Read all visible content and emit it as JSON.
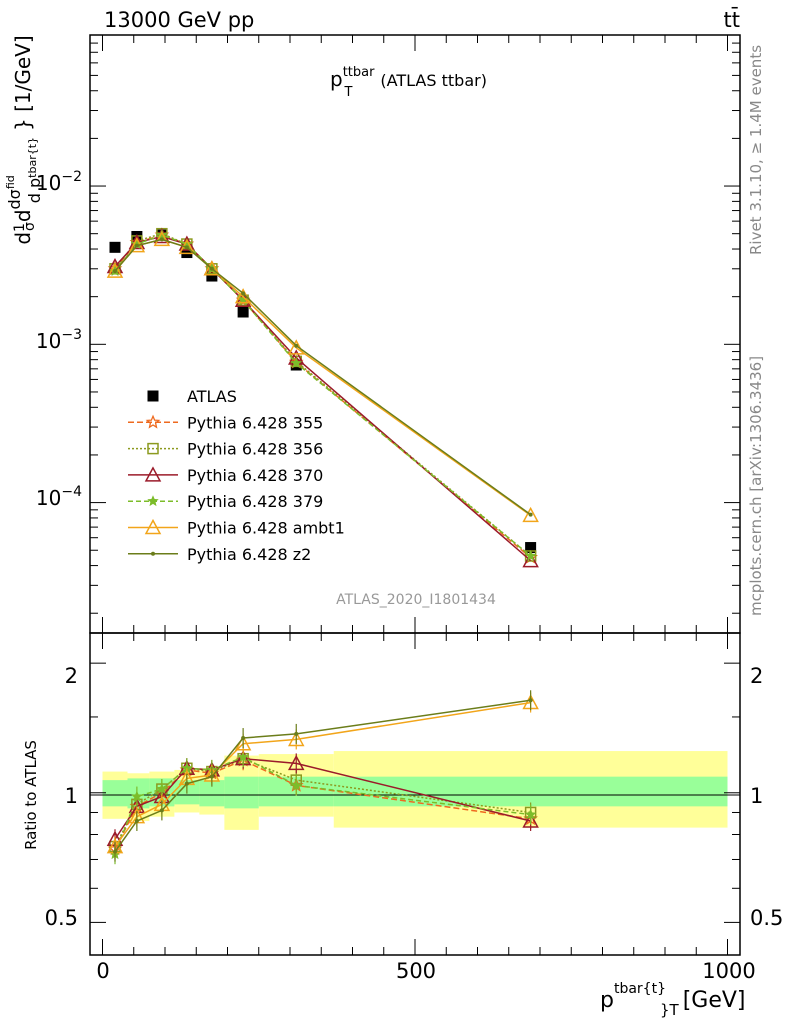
{
  "header": {
    "left": "13000 GeV pp",
    "right": "tt̄"
  },
  "side_labels": {
    "rivet": "Rivet 3.1.10, ≥ 1.4M events",
    "mcplots": "mcplots.cern.ch [arXiv:1306.3436]"
  },
  "analysis_id": "ATLAS_2020_I1801434",
  "title": {
    "main": "p",
    "sup": "ttbar",
    "sub": "T",
    "suffix": "(ATLAS ttbar)"
  },
  "ylabel_upper": "dσ/dp_T^tbar{t} · 1/σ  [1/GeV]",
  "ylabel_lower": "Ratio to ATLAS",
  "xlabel": {
    "main": "p",
    "sup": "tbar{t}",
    "sub": "T",
    "unit": "[GeV]"
  },
  "upper_ticks": [
    "10^{-2}",
    "10^{-3}",
    "10^{-4}"
  ],
  "lower_ticks": [
    "2",
    "1",
    "0.5"
  ],
  "x_ticks": [
    "0",
    "500",
    "1000"
  ],
  "colors": {
    "ATLAS": "#000000",
    "p355": "#ee6a1f",
    "p356": "#8c9a1f",
    "p370": "#9b1b2a",
    "p379": "#7cbc2a",
    "ambt1": "#f2a51a",
    "z2": "#6b7d1a",
    "band_inner": "#99ff99",
    "band_outer": "#ffff99"
  },
  "chart_data": {
    "type": "line",
    "x": [
      20,
      55,
      95,
      135,
      175,
      225,
      310,
      685
    ],
    "xlim": [
      -20,
      1020
    ],
    "upper": {
      "ylim": [
        1.5e-05,
        0.09
      ],
      "log": true,
      "series": [
        {
          "name": "ATLAS",
          "key": "ATLAS",
          "marker": "square",
          "values": [
            0.0041,
            0.0048,
            0.0049,
            0.0038,
            0.0027,
            0.0016,
            0.00074,
            5.2e-05
          ]
        },
        {
          "name": "Pythia 6.428 355",
          "key": "p355",
          "marker": "star-open",
          "dash": "6,3",
          "values": [
            0.003,
            0.0044,
            0.0049,
            0.0043,
            0.003,
            0.0019,
            0.00077,
            4.5e-05
          ]
        },
        {
          "name": "Pythia 6.428 356",
          "key": "p356",
          "marker": "square-open",
          "dash": "2,2",
          "values": [
            0.003,
            0.0045,
            0.005,
            0.0043,
            0.003,
            0.0019,
            0.00078,
            4.6e-05
          ]
        },
        {
          "name": "Pythia 6.428 370",
          "key": "p370",
          "marker": "triangle-open",
          "dash": "",
          "values": [
            0.0031,
            0.0044,
            0.0048,
            0.0043,
            0.003,
            0.0019,
            0.00082,
            4.3e-05
          ]
        },
        {
          "name": "Pythia 6.428 379",
          "key": "p379",
          "marker": "star",
          "dash": "5,3",
          "values": [
            0.0029,
            0.0043,
            0.0049,
            0.0043,
            0.003,
            0.0019,
            0.00076,
            4.6e-05
          ]
        },
        {
          "name": "Pythia 6.428 ambt1",
          "key": "ambt1",
          "marker": "triangle-open",
          "dash": "",
          "values": [
            0.0029,
            0.0042,
            0.0046,
            0.0041,
            0.003,
            0.002,
            0.00095,
            8.3e-05
          ]
        },
        {
          "name": "Pythia 6.428 z2",
          "key": "z2",
          "marker": "dot",
          "dash": "",
          "values": [
            0.0029,
            0.0042,
            0.0046,
            0.0041,
            0.003,
            0.0021,
            0.00098,
            8.4e-05
          ]
        }
      ]
    },
    "lower": {
      "ylim": [
        0.42,
        2.35
      ],
      "log": true,
      "bands": {
        "edges": [
          0,
          40,
          75,
          115,
          155,
          195,
          250,
          370,
          1000
        ],
        "inner": [
          [
            0.93,
            1.07
          ],
          [
            0.92,
            1.08
          ],
          [
            0.93,
            1.08
          ],
          [
            0.94,
            1.07
          ],
          [
            0.93,
            1.07
          ],
          [
            0.92,
            1.09
          ],
          [
            0.93,
            1.09
          ],
          [
            0.93,
            1.09
          ]
        ],
        "outer": [
          [
            0.87,
            1.12
          ],
          [
            0.86,
            1.11
          ],
          [
            0.88,
            1.12
          ],
          [
            0.9,
            1.13
          ],
          [
            0.89,
            1.14
          ],
          [
            0.82,
            1.22
          ],
          [
            0.88,
            1.23
          ],
          [
            0.83,
            1.25
          ]
        ]
      },
      "series": [
        {
          "key": "p355",
          "values": [
            0.74,
            0.93,
            1.0,
            1.13,
            1.11,
            1.19,
            1.04,
            0.87
          ]
        },
        {
          "key": "p356",
          "values": [
            0.75,
            0.94,
            1.02,
            1.14,
            1.12,
            1.2,
            1.07,
            0.9
          ]
        },
        {
          "key": "p370",
          "values": [
            0.78,
            0.93,
            0.98,
            1.14,
            1.13,
            1.2,
            1.17,
            0.86
          ]
        },
        {
          "key": "p379",
          "values": [
            0.72,
            0.98,
            1.02,
            1.14,
            1.13,
            1.21,
            1.04,
            0.89
          ]
        },
        {
          "key": "ambt1",
          "values": [
            0.75,
            0.88,
            0.94,
            1.08,
            1.1,
            1.3,
            1.33,
            1.62
          ]
        },
        {
          "key": "z2",
          "values": [
            0.73,
            0.86,
            0.91,
            1.05,
            1.09,
            1.34,
            1.37,
            1.64
          ]
        }
      ]
    }
  }
}
